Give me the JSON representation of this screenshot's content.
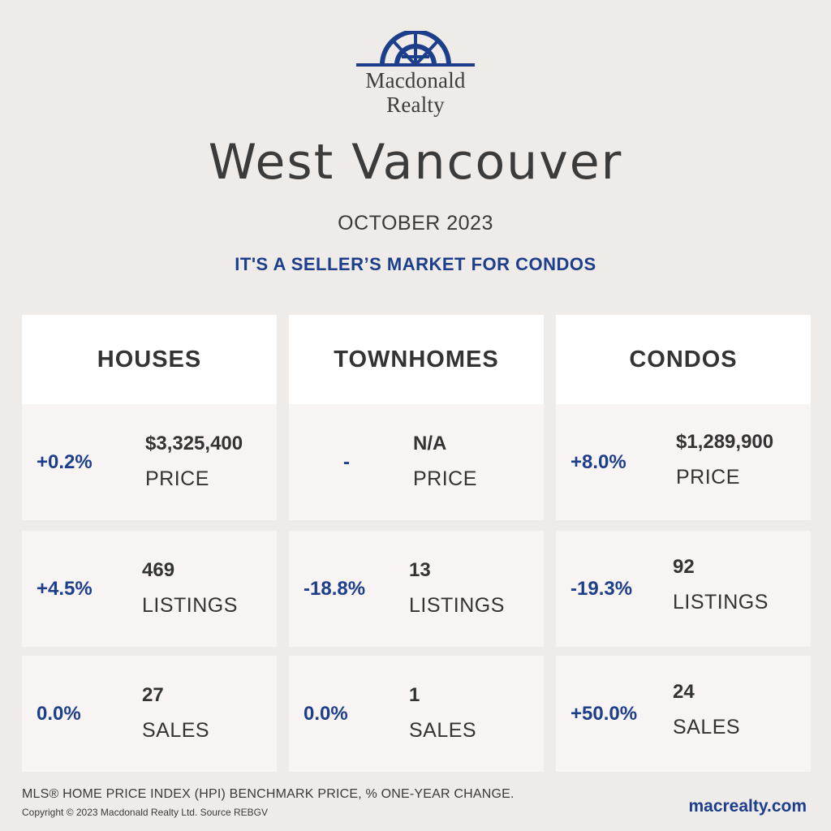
{
  "brand": {
    "line1": "Macdonald",
    "line2": "Realty",
    "logo_icon": "sunrise-compass-logo",
    "accent_color": "#1d3e8a"
  },
  "city": "West Vancouver",
  "month": "OCTOBER 2023",
  "headline": "IT'S A SELLER’S MARKET FOR CONDOS",
  "columns": [
    {
      "name": "HOUSES",
      "rows": [
        {
          "change": "+0.2%",
          "value": "$3,325,400",
          "label": "PRICE"
        },
        {
          "change": "+4.5%",
          "value": "469",
          "label": "LISTINGS"
        },
        {
          "change": "0.0%",
          "value": "27",
          "label": "SALES"
        }
      ]
    },
    {
      "name": "TOWNHOMES",
      "rows": [
        {
          "change": "-",
          "value": "N/A",
          "label": "PRICE"
        },
        {
          "change": "-18.8%",
          "value": "13",
          "label": "LISTINGS"
        },
        {
          "change": "0.0%",
          "value": "1",
          "label": "SALES"
        }
      ]
    },
    {
      "name": "CONDOS",
      "rows": [
        {
          "change": "+8.0%",
          "value": "$1,289,900",
          "label": "PRICE"
        },
        {
          "change": "-19.3%",
          "value": "92",
          "label": "LISTINGS"
        },
        {
          "change": "+50.0%",
          "value": "24",
          "label": "SALES"
        }
      ]
    }
  ],
  "footer": {
    "note": "MLS® HOME PRICE INDEX (HPI) BENCHMARK PRICE, % ONE-YEAR CHANGE.",
    "copyright": "Copyright © 2023 Macdonald Realty Ltd. Source REBGV",
    "website": "macrealty.com"
  }
}
